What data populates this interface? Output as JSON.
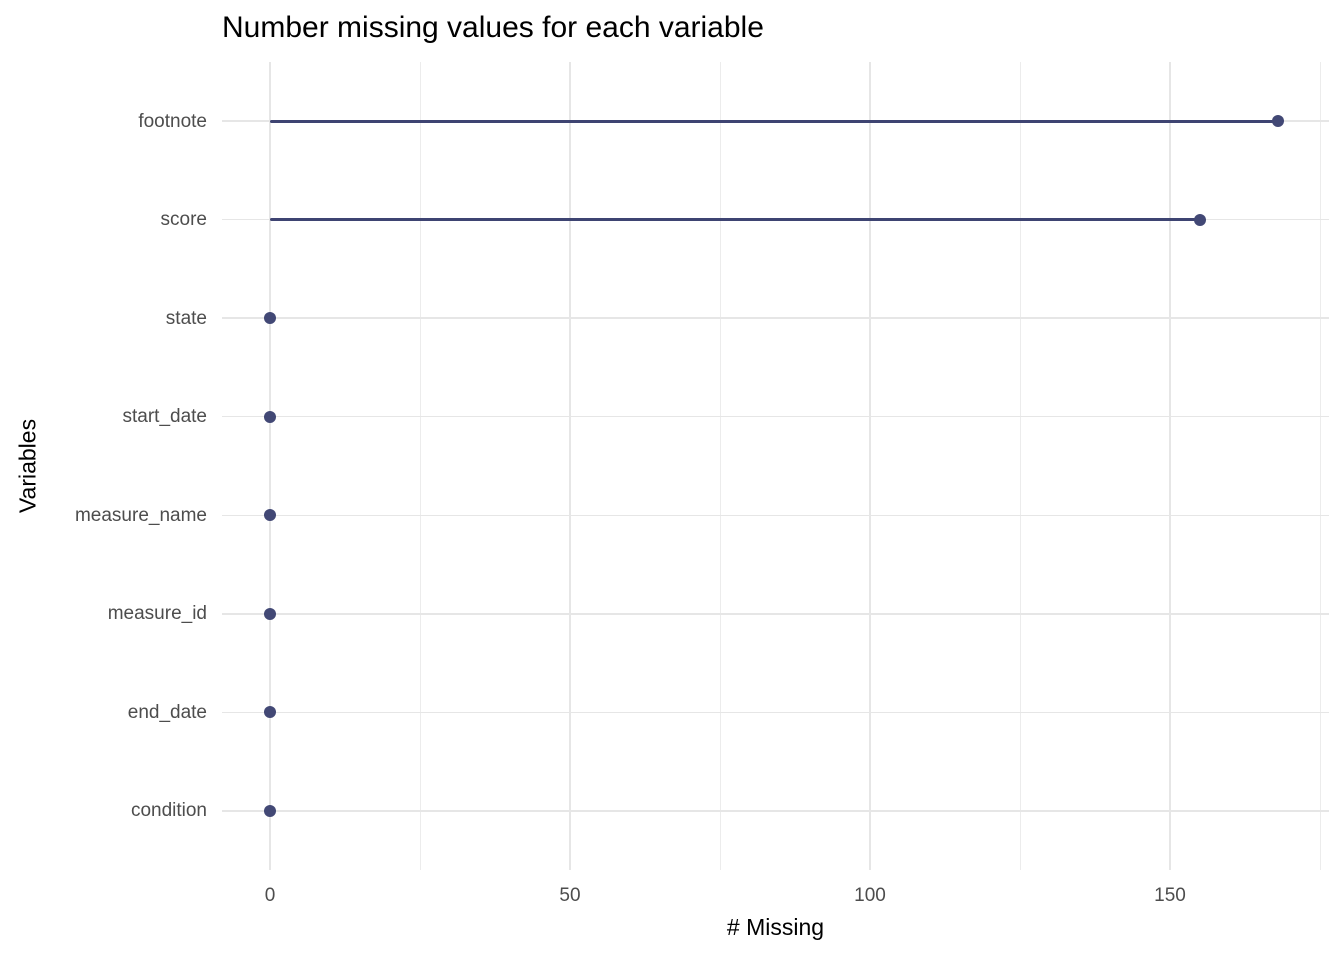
{
  "chart_data": {
    "type": "lollipop",
    "orientation": "horizontal",
    "title": "Number missing values for each variable",
    "xlabel": "# Missing",
    "ylabel": "Variables",
    "categories": [
      "footnote",
      "score",
      "state",
      "start_date",
      "measure_name",
      "measure_id",
      "end_date",
      "condition"
    ],
    "values": [
      168,
      155,
      0,
      0,
      0,
      0,
      0,
      0
    ],
    "xlim": [
      0,
      175
    ],
    "x_major_ticks": [
      0,
      50,
      100,
      150
    ],
    "x_minor_ticks": [
      25,
      75,
      125,
      175
    ],
    "grid": "vertical major+minor gridlines and one horizontal gridline per category, light gray on white",
    "legend": false,
    "colors": {
      "point": "#424875",
      "segment": "#3e4472",
      "grid_major": "#e6e6e6",
      "grid_minor": "#ececec",
      "tick_label": "#4d4d4d",
      "axis_title": "#000000",
      "title": "#000000",
      "background": "#ffffff"
    }
  }
}
